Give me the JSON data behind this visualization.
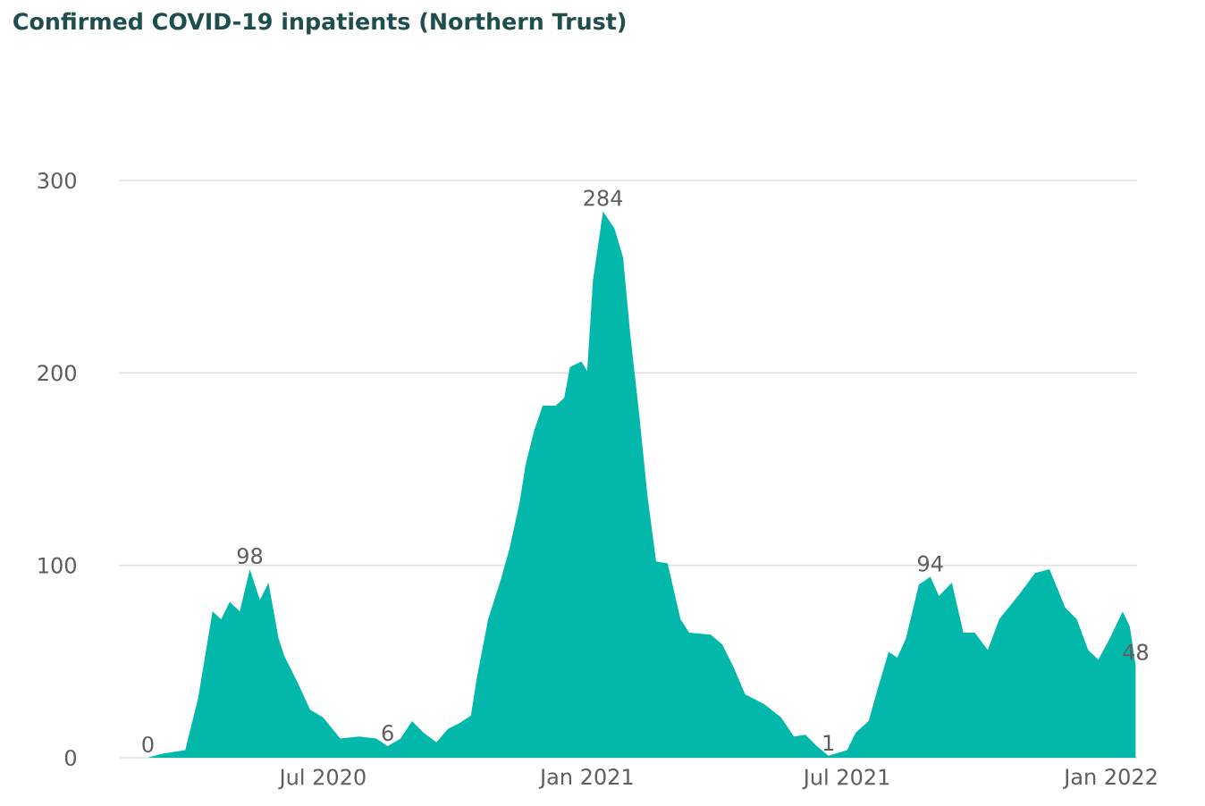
{
  "chart_data": {
    "type": "area",
    "title": "Confirmed COVID-19 inpatients (Northern Trust)",
    "color": "#01b8aa",
    "grid": "y",
    "xlim": [
      "2020-02-10",
      "2022-01-19"
    ],
    "ylim": [
      0,
      300
    ],
    "yticks": [
      0,
      100,
      200,
      300
    ],
    "xticks": [
      {
        "value": "2020-07-01",
        "label": "Jul 2020"
      },
      {
        "value": "2021-01-01",
        "label": "Jan 2021"
      },
      {
        "value": "2021-07-01",
        "label": "Jul 2021"
      },
      {
        "value": "2022-01-01",
        "label": "Jan 2022"
      }
    ],
    "x": [
      "2020-03-01",
      "2020-03-10",
      "2020-03-27",
      "2020-04-05",
      "2020-04-15",
      "2020-04-21",
      "2020-04-27",
      "2020-05-04",
      "2020-05-11",
      "2020-05-18",
      "2020-05-24",
      "2020-05-31",
      "2020-06-04",
      "2020-06-14",
      "2020-06-22",
      "2020-07-01",
      "2020-07-13",
      "2020-07-26",
      "2020-08-07",
      "2020-08-15",
      "2020-08-24",
      "2020-09-01",
      "2020-09-09",
      "2020-09-18",
      "2020-09-26",
      "2020-10-04",
      "2020-10-12",
      "2020-10-16",
      "2020-10-24",
      "2020-11-02",
      "2020-11-08",
      "2020-11-15",
      "2020-11-19",
      "2020-11-25",
      "2020-12-01",
      "2020-12-10",
      "2020-12-16",
      "2020-12-20",
      "2020-12-28",
      "2021-01-01",
      "2021-01-05",
      "2021-01-12",
      "2021-01-20",
      "2021-01-26",
      "2021-01-31",
      "2021-02-06",
      "2021-02-12",
      "2021-02-18",
      "2021-02-26",
      "2021-03-07",
      "2021-03-13",
      "2021-03-28",
      "2021-04-05",
      "2021-04-13",
      "2021-04-21",
      "2021-05-04",
      "2021-05-16",
      "2021-05-25",
      "2021-06-02",
      "2021-06-10",
      "2021-06-18",
      "2021-07-01",
      "2021-07-07",
      "2021-07-16",
      "2021-07-22",
      "2021-07-30",
      "2021-08-05",
      "2021-08-11",
      "2021-08-20",
      "2021-08-28",
      "2021-09-03",
      "2021-09-12",
      "2021-09-20",
      "2021-09-28",
      "2021-10-07",
      "2021-10-15",
      "2021-10-29",
      "2021-11-09",
      "2021-11-19",
      "2021-11-30",
      "2021-12-08",
      "2021-12-16",
      "2021-12-23",
      "2021-12-31",
      "2022-01-09",
      "2022-01-14",
      "2022-01-18"
    ],
    "values": [
      0,
      2,
      4,
      31,
      76,
      72,
      81,
      76,
      98,
      82,
      91,
      62,
      53,
      38,
      25,
      21,
      10,
      11,
      10,
      6,
      10,
      19,
      13,
      8,
      15,
      18,
      22,
      41,
      72,
      93,
      109,
      133,
      152,
      170,
      183,
      183,
      187,
      203,
      206,
      201,
      248,
      284,
      275,
      260,
      220,
      180,
      136,
      102,
      101,
      72,
      65,
      64,
      59,
      47,
      33,
      28,
      21,
      11,
      12,
      6,
      1,
      4,
      13,
      19,
      35,
      55,
      52,
      62,
      90,
      94,
      84,
      91,
      65,
      65,
      56,
      72,
      85,
      96,
      98,
      78,
      72,
      56,
      51,
      62,
      76,
      68,
      48
    ],
    "value_labels": [
      "0",
      null,
      null,
      null,
      null,
      null,
      null,
      null,
      "98",
      null,
      null,
      null,
      null,
      null,
      null,
      null,
      null,
      null,
      null,
      "6",
      null,
      null,
      null,
      null,
      null,
      null,
      null,
      null,
      null,
      null,
      null,
      null,
      null,
      null,
      null,
      null,
      null,
      null,
      null,
      null,
      null,
      "284",
      null,
      null,
      null,
      null,
      null,
      null,
      null,
      null,
      null,
      null,
      null,
      null,
      null,
      null,
      null,
      null,
      null,
      null,
      "1",
      null,
      null,
      null,
      null,
      null,
      null,
      null,
      null,
      "94",
      null,
      null,
      null,
      null,
      null,
      null,
      null,
      null,
      null,
      null,
      null,
      null,
      null,
      null,
      null,
      null,
      "48"
    ]
  }
}
